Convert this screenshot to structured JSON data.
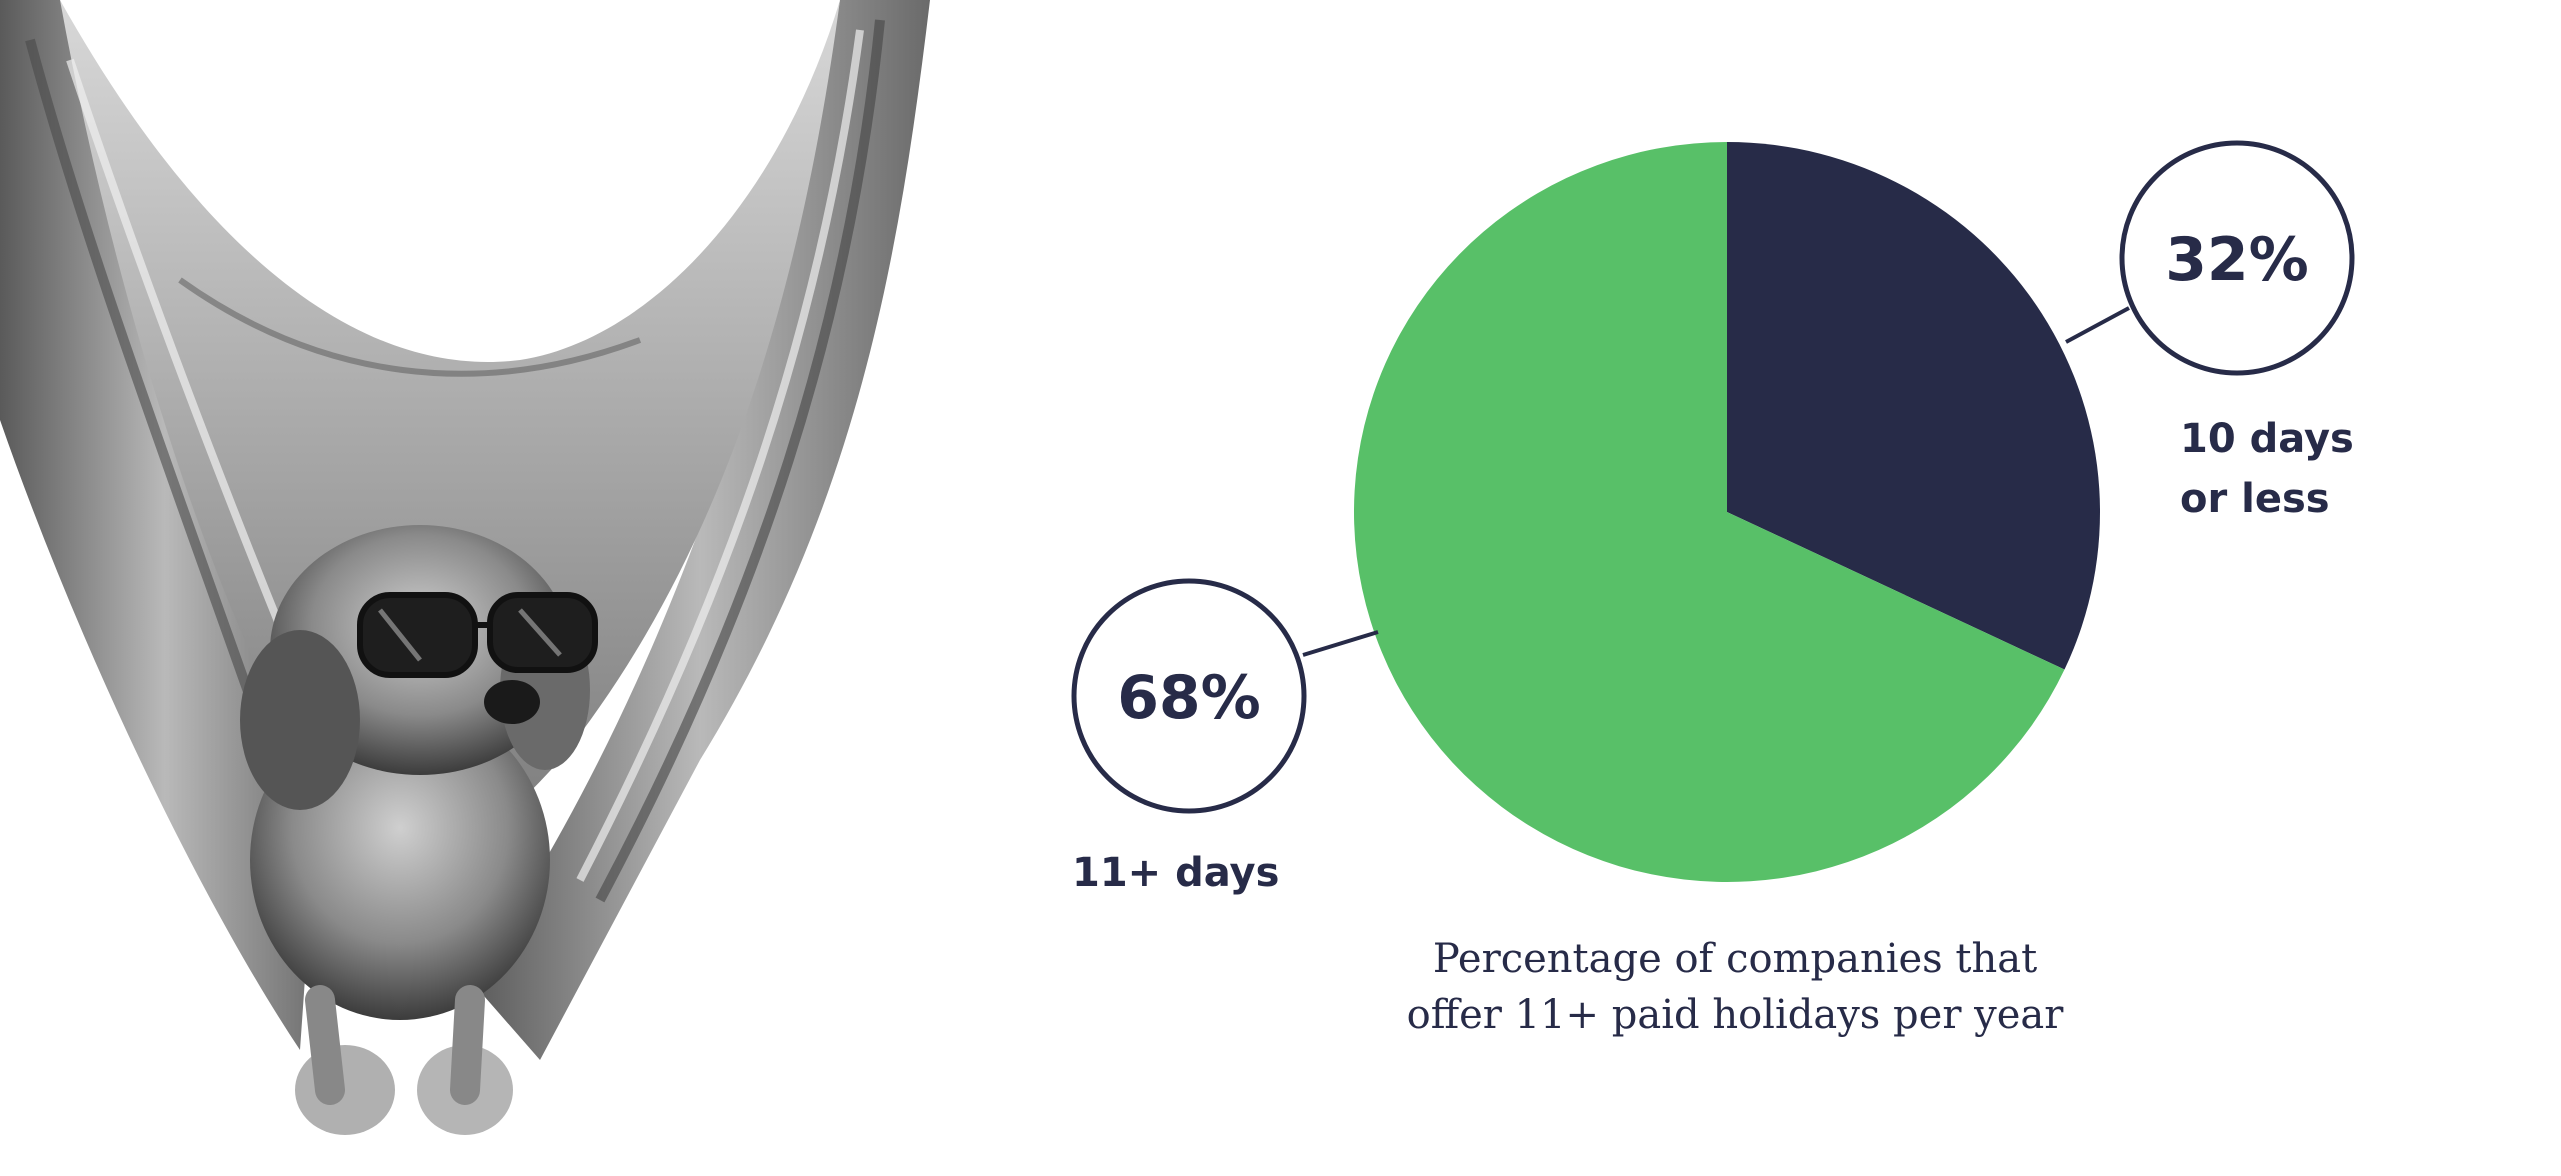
{
  "colors": {
    "navy": "#272b48",
    "green": "#58c068",
    "background": "#ffffff"
  },
  "photo": {
    "icon": "dog-in-hammock-illustration"
  },
  "chart_data": {
    "type": "pie",
    "title": "",
    "caption_lines": [
      "Percentage of companies that",
      "offer 11+ paid holidays per year"
    ],
    "slices": [
      {
        "label_lines": [
          "10 days",
          "or less"
        ],
        "value": 32,
        "value_label": "32%",
        "color": "#272b48"
      },
      {
        "label_lines": [
          "11+ days"
        ],
        "value": 68,
        "value_label": "68%",
        "color": "#58c068"
      }
    ]
  }
}
